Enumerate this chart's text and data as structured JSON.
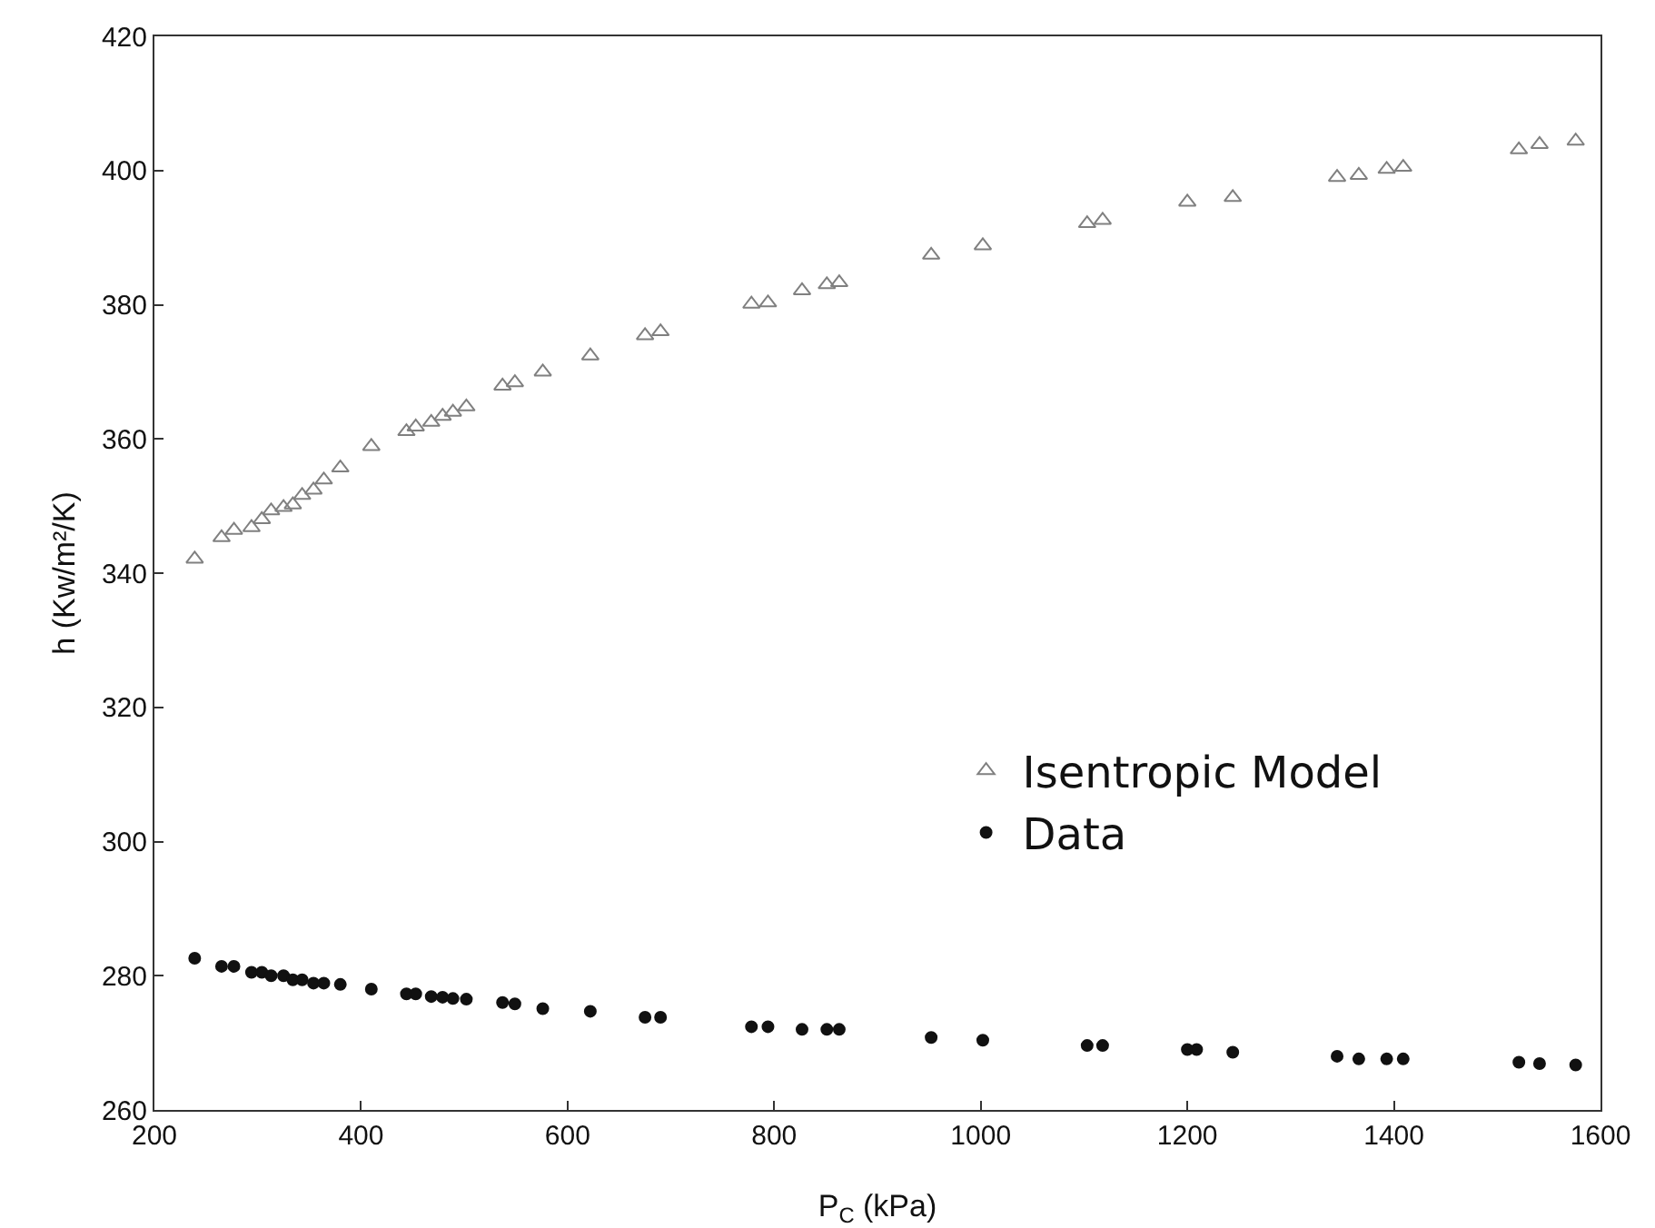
{
  "chart_data": {
    "type": "scatter",
    "xlabel": "P$_{C}$ (kPa)",
    "ylabel": "h (Kw/m²/K)",
    "xlim": [
      200,
      1600
    ],
    "xticks": [
      200,
      400,
      600,
      800,
      1000,
      1200,
      1400,
      1600
    ],
    "ylim": [
      260,
      420
    ],
    "yticks": [
      260,
      280,
      300,
      320,
      340,
      360,
      380,
      400,
      420
    ],
    "grid": false,
    "legend": "bottom right",
    "series": [
      {
        "name": "Isentropic Model",
        "color": "#808080",
        "marker": "triangle",
        "x": [
          239,
          265,
          277,
          294,
          304,
          313,
          325,
          334,
          343,
          354,
          364,
          380,
          410,
          444,
          453,
          468,
          479,
          489,
          502,
          537,
          549,
          576,
          622,
          675,
          690,
          778,
          794,
          827,
          851,
          863,
          952,
          1002,
          1103,
          1118,
          1200,
          1244,
          1345,
          1366,
          1393,
          1409,
          1521,
          1541,
          1576
        ],
        "values": [
          342.1,
          345.3,
          346.4,
          346.8,
          348.0,
          349.3,
          349.8,
          350.2,
          351.6,
          352.4,
          353.9,
          355.7,
          358.9,
          361.1,
          361.8,
          362.5,
          363.4,
          364.0,
          364.8,
          367.9,
          368.4,
          370.0,
          372.4,
          375.4,
          376.0,
          380.1,
          380.3,
          382.1,
          383.0,
          383.3,
          387.4,
          388.8,
          392.1,
          392.6,
          395.3,
          396.0,
          399.0,
          399.3,
          400.2,
          400.5,
          403.1,
          403.9,
          404.4
        ]
      },
      {
        "name": "Data",
        "color": "#111111",
        "marker": "circle",
        "x": [
          239,
          265,
          277,
          294,
          304,
          313,
          325,
          334,
          343,
          354,
          364,
          380,
          410,
          444,
          453,
          468,
          479,
          489,
          502,
          537,
          549,
          576,
          622,
          675,
          690,
          778,
          794,
          827,
          851,
          863,
          952,
          1002,
          1103,
          1118,
          1200,
          1209,
          1244,
          1345,
          1366,
          1393,
          1409,
          1521,
          1541,
          1576
        ],
        "values": [
          282.6,
          281.4,
          281.4,
          280.5,
          280.5,
          280.0,
          280.0,
          279.4,
          279.4,
          278.9,
          278.9,
          278.7,
          278.0,
          277.3,
          277.3,
          276.9,
          276.8,
          276.6,
          276.5,
          276.0,
          275.8,
          275.1,
          274.7,
          273.8,
          273.8,
          272.4,
          272.4,
          272.0,
          272.0,
          272.0,
          270.8,
          270.4,
          269.6,
          269.6,
          269.0,
          269.0,
          268.6,
          268.0,
          267.6,
          267.6,
          267.6,
          267.1,
          266.9,
          266.7
        ]
      }
    ]
  }
}
